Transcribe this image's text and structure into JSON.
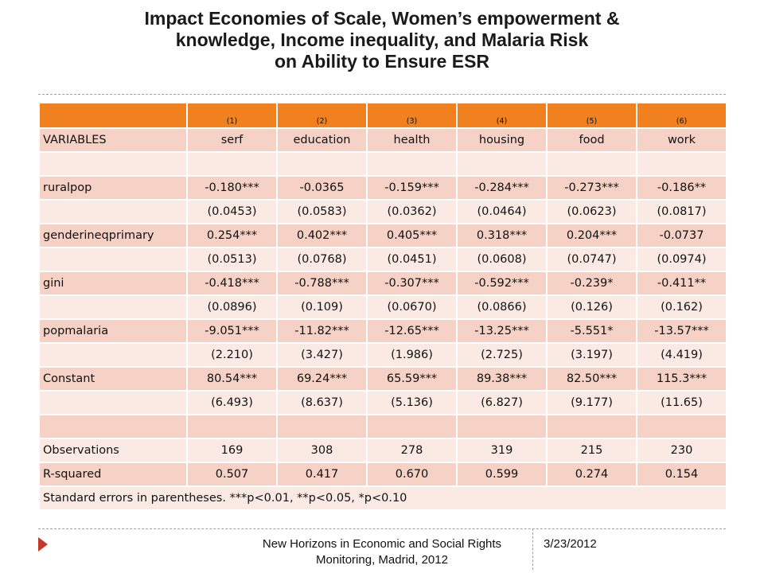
{
  "title": {
    "line1": "Impact Economies of Scale, Women’s empowerment &",
    "line2": "knowledge, Income inequality, and Malaria Risk",
    "line3": "on Ability to Ensure ESR"
  },
  "table": {
    "model_numbers": [
      "",
      "(1)",
      "(2)",
      "(3)",
      "(4)",
      "(5)",
      "(6)"
    ],
    "column_headers": [
      "VARIABLES",
      "serf",
      "education",
      "health",
      "housing",
      "food",
      "work"
    ],
    "rows": [
      {
        "style": "light",
        "cells": [
          "",
          "",
          "",
          "",
          "",
          "",
          ""
        ]
      },
      {
        "style": "dark",
        "cells": [
          "ruralpop",
          "-0.180***",
          "-0.0365",
          "-0.159***",
          "-0.284***",
          "-0.273***",
          "-0.186**"
        ]
      },
      {
        "style": "light",
        "cells": [
          "",
          "(0.0453)",
          "(0.0583)",
          "(0.0362)",
          "(0.0464)",
          "(0.0623)",
          "(0.0817)"
        ]
      },
      {
        "style": "dark",
        "cells": [
          "genderineqprimary",
          "0.254***",
          "0.402***",
          "0.405***",
          "0.318***",
          "0.204***",
          "-0.0737"
        ]
      },
      {
        "style": "light",
        "cells": [
          "",
          "(0.0513)",
          "(0.0768)",
          "(0.0451)",
          "(0.0608)",
          "(0.0747)",
          "(0.0974)"
        ]
      },
      {
        "style": "dark",
        "cells": [
          "gini",
          "-0.418***",
          "-0.788***",
          "-0.307***",
          "-0.592***",
          "-0.239*",
          "-0.411**"
        ]
      },
      {
        "style": "light",
        "cells": [
          "",
          "(0.0896)",
          "(0.109)",
          "(0.0670)",
          "(0.0866)",
          "(0.126)",
          "(0.162)"
        ]
      },
      {
        "style": "dark",
        "cells": [
          "popmalaria",
          "-9.051***",
          "-11.82***",
          "-12.65***",
          "-13.25***",
          "-5.551*",
          "-13.57***"
        ]
      },
      {
        "style": "light",
        "cells": [
          "",
          "(2.210)",
          "(3.427)",
          "(1.986)",
          "(2.725)",
          "(3.197)",
          "(4.419)"
        ]
      },
      {
        "style": "dark",
        "cells": [
          "Constant",
          "80.54***",
          "69.24***",
          "65.59***",
          "89.38***",
          "82.50***",
          "115.3***"
        ]
      },
      {
        "style": "light",
        "cells": [
          "",
          "(6.493)",
          "(8.637)",
          "(5.136)",
          "(6.827)",
          "(9.177)",
          "(11.65)"
        ]
      },
      {
        "style": "dark",
        "cells": [
          "",
          "",
          "",
          "",
          "",
          "",
          ""
        ]
      },
      {
        "style": "light",
        "cells": [
          "Observations",
          "169",
          "308",
          "278",
          "319",
          "215",
          "230"
        ]
      },
      {
        "style": "dark",
        "cells": [
          "R-squared",
          "0.507",
          "0.417",
          "0.670",
          "0.599",
          "0.274",
          "0.154"
        ]
      }
    ],
    "note": "Standard errors in parentheses.   ***p<0.01, **p<0.05, *p<0.10"
  },
  "footer": {
    "line1": "New Horizons in Economic and Social Rights",
    "line2": "Monitoring, Madrid, 2012",
    "date": "3/23/2012"
  },
  "colors": {
    "header_orange": "#f1801e",
    "row_dark": "#f5d2c5",
    "row_light": "#fbeae4",
    "accent_red": "#c0392b"
  }
}
